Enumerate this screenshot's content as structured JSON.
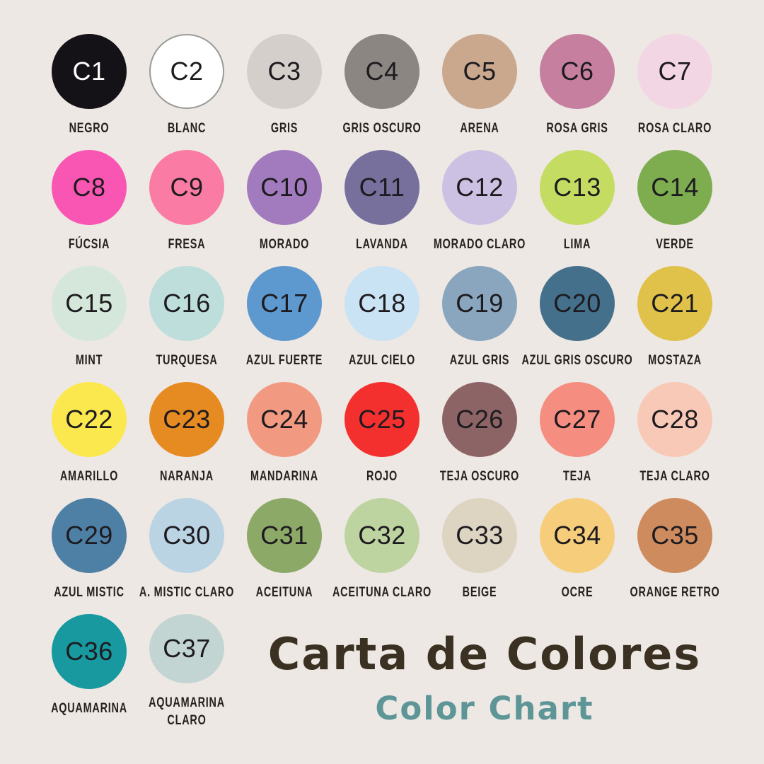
{
  "title": {
    "main": "Carta de Colores",
    "sub": "Color Chart"
  },
  "colors": {
    "background": "#EDE8E3",
    "title": "#3A3122",
    "subtitle": "#5E9697",
    "label_text": "#26211E",
    "number_text": "#1D1B1F"
  },
  "swatches": [
    {
      "code": "C1",
      "name": "NEGRO",
      "hex": "#151217",
      "text_color": "#FFFFFF"
    },
    {
      "code": "C2",
      "name": "BLANC",
      "hex": "#FFFFFF",
      "border": "#9A9A98"
    },
    {
      "code": "C3",
      "name": "GRIS",
      "hex": "#D5CFCC"
    },
    {
      "code": "C4",
      "name": "GRIS OSCURO",
      "hex": "#8B8682"
    },
    {
      "code": "C5",
      "name": "ARENA",
      "hex": "#C9A88E"
    },
    {
      "code": "C6",
      "name": "ROSA GRIS",
      "hex": "#C67F9F"
    },
    {
      "code": "C7",
      "name": "ROSA CLARO",
      "hex": "#F3D6E3"
    },
    {
      "code": "C8",
      "name": "FÚCSIA",
      "hex": "#F956B3"
    },
    {
      "code": "C9",
      "name": "FRESA",
      "hex": "#FA7BA3"
    },
    {
      "code": "C10",
      "name": "MORADO",
      "hex": "#A17BBE"
    },
    {
      "code": "C11",
      "name": "LAVANDA",
      "hex": "#77709D"
    },
    {
      "code": "C12",
      "name": "MORADO CLARO",
      "hex": "#CDC1E3"
    },
    {
      "code": "C13",
      "name": "LIMA",
      "hex": "#C4DC62"
    },
    {
      "code": "C14",
      "name": "VERDE",
      "hex": "#7DAD4F"
    },
    {
      "code": "C15",
      "name": "MINT",
      "hex": "#D5E7DA"
    },
    {
      "code": "C16",
      "name": "TURQUESA",
      "hex": "#BDDEDB"
    },
    {
      "code": "C17",
      "name": "AZUL FUERTE",
      "hex": "#5D98CF"
    },
    {
      "code": "C18",
      "name": "AZUL CIELO",
      "hex": "#C9E2F4"
    },
    {
      "code": "C19",
      "name": "AZUL GRIS",
      "hex": "#8AA6BE"
    },
    {
      "code": "C20",
      "name": "AZUL GRIS OSCURO",
      "hex": "#45708C"
    },
    {
      "code": "C21",
      "name": "MOSTAZA",
      "hex": "#E0C24A"
    },
    {
      "code": "C22",
      "name": "AMARILLO",
      "hex": "#FBE84E"
    },
    {
      "code": "C23",
      "name": "NARANJA",
      "hex": "#E68A22"
    },
    {
      "code": "C24",
      "name": "MANDARINA",
      "hex": "#F29981"
    },
    {
      "code": "C25",
      "name": "ROJO",
      "hex": "#F4302F"
    },
    {
      "code": "C26",
      "name": "TEJA OSCURO",
      "hex": "#8D6465"
    },
    {
      "code": "C27",
      "name": "TEJA",
      "hex": "#F58D80"
    },
    {
      "code": "C28",
      "name": "TEJA CLARO",
      "hex": "#F9C9B7"
    },
    {
      "code": "C29",
      "name": "AZUL MISTIC",
      "hex": "#4E80A6"
    },
    {
      "code": "C30",
      "name": "A. MISTIC CLARO",
      "hex": "#BAD4E4"
    },
    {
      "code": "C31",
      "name": "ACEITUNA",
      "hex": "#8DA968"
    },
    {
      "code": "C32",
      "name": "ACEITUNA CLARO",
      "hex": "#BDD4A1"
    },
    {
      "code": "C33",
      "name": "BEIGE",
      "hex": "#DED4C2"
    },
    {
      "code": "C34",
      "name": "OCRE",
      "hex": "#F6CE7B"
    },
    {
      "code": "C35",
      "name": "ORANGE RETRO",
      "hex": "#CE8B5E"
    },
    {
      "code": "C36",
      "name": "AQUAMARINA",
      "hex": "#17999F"
    },
    {
      "code": "C37",
      "name": "AQUAMARINA\nCLARO",
      "hex": "#C3D5D2"
    }
  ],
  "chart_data": {
    "type": "table",
    "title": "Carta de Colores",
    "subtitle": "Color Chart",
    "columns": [
      "code",
      "name",
      "hex"
    ],
    "rows": [
      [
        "C1",
        "NEGRO",
        "#151217"
      ],
      [
        "C2",
        "BLANC",
        "#FFFFFF"
      ],
      [
        "C3",
        "GRIS",
        "#D5CFCC"
      ],
      [
        "C4",
        "GRIS OSCURO",
        "#8B8682"
      ],
      [
        "C5",
        "ARENA",
        "#C9A88E"
      ],
      [
        "C6",
        "ROSA GRIS",
        "#C67F9F"
      ],
      [
        "C7",
        "ROSA CLARO",
        "#F3D6E3"
      ],
      [
        "C8",
        "FÚCSIA",
        "#F956B3"
      ],
      [
        "C9",
        "FRESA",
        "#FA7BA3"
      ],
      [
        "C10",
        "MORADO",
        "#A17BBE"
      ],
      [
        "C11",
        "LAVANDA",
        "#77709D"
      ],
      [
        "C12",
        "MORADO CLARO",
        "#CDC1E3"
      ],
      [
        "C13",
        "LIMA",
        "#C4DC62"
      ],
      [
        "C14",
        "VERDE",
        "#7DAD4F"
      ],
      [
        "C15",
        "MINT",
        "#D5E7DA"
      ],
      [
        "C16",
        "TURQUESA",
        "#BDDEDB"
      ],
      [
        "C17",
        "AZUL FUERTE",
        "#5D98CF"
      ],
      [
        "C18",
        "AZUL CIELO",
        "#C9E2F4"
      ],
      [
        "C19",
        "AZUL GRIS",
        "#8AA6BE"
      ],
      [
        "C20",
        "AZUL GRIS OSCURO",
        "#45708C"
      ],
      [
        "C21",
        "MOSTAZA",
        "#E0C24A"
      ],
      [
        "C22",
        "AMARILLO",
        "#FBE84E"
      ],
      [
        "C23",
        "NARANJA",
        "#E68A22"
      ],
      [
        "C24",
        "MANDARINA",
        "#F29981"
      ],
      [
        "C25",
        "ROJO",
        "#F4302F"
      ],
      [
        "C26",
        "TEJA OSCURO",
        "#8D6465"
      ],
      [
        "C27",
        "TEJA",
        "#F58D80"
      ],
      [
        "C28",
        "TEJA CLARO",
        "#F9C9B7"
      ],
      [
        "C29",
        "AZUL MISTIC",
        "#4E80A6"
      ],
      [
        "C30",
        "A. MISTIC CLARO",
        "#BAD4E4"
      ],
      [
        "C31",
        "ACEITUNA",
        "#8DA968"
      ],
      [
        "C32",
        "ACEITUNA CLARO",
        "#BDD4A1"
      ],
      [
        "C33",
        "BEIGE",
        "#DED4C2"
      ],
      [
        "C34",
        "OCRE",
        "#F6CE7B"
      ],
      [
        "C35",
        "ORANGE RETRO",
        "#CE8B5E"
      ],
      [
        "C36",
        "AQUAMARINA",
        "#17999F"
      ],
      [
        "C37",
        "AQUAMARINA CLARO",
        "#C3D5D2"
      ]
    ]
  }
}
